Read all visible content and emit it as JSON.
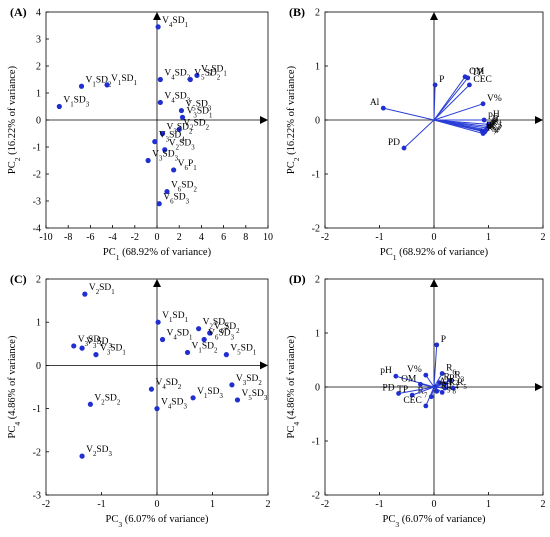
{
  "chart_data": [
    {
      "type": "scatter",
      "panel": "(A)",
      "xlabel": "PC|1| (68.92% of variance)",
      "ylabel": "PC|2| (16.22% of variance)",
      "xlim": [
        -10,
        10
      ],
      "ylim": [
        -4,
        4
      ],
      "xticks": [
        -10,
        -8,
        -6,
        -4,
        -2,
        0,
        2,
        4,
        6,
        8,
        10
      ],
      "yticks": [
        -4,
        -3,
        -2,
        -1,
        0,
        1,
        2,
        3,
        4
      ],
      "grid": false,
      "marker_color": "#1f2fd0",
      "points": [
        {
          "label": "V|4|SD|1|",
          "x": 0.1,
          "y": 3.45
        },
        {
          "label": "V|1|SD|2|",
          "x": -6.8,
          "y": 1.25
        },
        {
          "label": "V|1|SD|1|",
          "x": -4.5,
          "y": 1.3
        },
        {
          "label": "V|1|SD|3|",
          "x": -8.8,
          "y": 0.5
        },
        {
          "label": "V|4|SD|2|",
          "x": 0.3,
          "y": 1.5
        },
        {
          "label": "V|5|SD|1|",
          "x": 3.6,
          "y": 1.65
        },
        {
          "label": "V|5|SD|2|",
          "x": 3.0,
          "y": 1.5
        },
        {
          "label": "V|4|SD|3|",
          "x": 0.3,
          "y": 0.65
        },
        {
          "label": "V|5|SD|3|",
          "x": 2.2,
          "y": 0.35
        },
        {
          "label": "V|3|SD|1|",
          "x": 2.3,
          "y": 0.1
        },
        {
          "label": "V|2|SD|2|",
          "x": 2.0,
          "y": -0.35
        },
        {
          "label": "V|3|SD|2|",
          "x": 0.5,
          "y": -0.5
        },
        {
          "label": "V|3|SD|4|",
          "x": -0.2,
          "y": -0.8
        },
        {
          "label": "V|2|SD|3|",
          "x": 0.7,
          "y": -1.1
        },
        {
          "label": "V|3|SD|3|",
          "x": -0.8,
          "y": -1.5
        },
        {
          "label": "V|6|P|1|",
          "x": 1.5,
          "y": -1.85
        },
        {
          "label": "V|6|SD|2|",
          "x": 0.9,
          "y": -2.65
        },
        {
          "label": "V|6|SD|3|",
          "x": 0.2,
          "y": -3.1
        }
      ]
    },
    {
      "type": "biplot",
      "panel": "(B)",
      "xlabel": "PC|1| (68.92% of variance)",
      "ylabel": "PC|2| (16.22% of variance)",
      "xlim": [
        -2,
        2
      ],
      "ylim": [
        -2,
        2
      ],
      "xticks": [
        -2,
        -1,
        0,
        1,
        2
      ],
      "yticks": [
        -2,
        -1,
        0,
        1,
        2
      ],
      "grid": false,
      "marker_color": "#1f2fd0",
      "vectors": [
        {
          "label": "OM",
          "x": 0.57,
          "y": 0.8
        },
        {
          "label": "TP",
          "x": 0.62,
          "y": 0.78
        },
        {
          "label": "CEC",
          "x": 0.65,
          "y": 0.65
        },
        {
          "label": "P",
          "x": 0.02,
          "y": 0.65
        },
        {
          "label": "V%",
          "x": 0.9,
          "y": 0.3
        },
        {
          "label": "pH",
          "x": 0.92,
          "y": 0.0
        },
        {
          "label": "Al",
          "x": -0.93,
          "y": 0.22
        },
        {
          "label": "PD",
          "x": -0.55,
          "y": -0.52
        },
        {
          "label": "R|1|",
          "x": 1.0,
          "y": -0.08
        },
        {
          "label": "R|5|",
          "x": 1.0,
          "y": -0.12
        },
        {
          "label": "R|3|",
          "x": 0.98,
          "y": -0.15
        },
        {
          "label": "R|4|",
          "x": 0.96,
          "y": -0.18
        },
        {
          "label": "R|2|",
          "x": 0.94,
          "y": -0.2
        },
        {
          "label": "R|8|",
          "x": 0.93,
          "y": -0.22
        },
        {
          "label": "R|9|",
          "x": 0.88,
          "y": -0.2
        },
        {
          "label": "R|7|",
          "x": 0.9,
          "y": -0.25
        }
      ]
    },
    {
      "type": "scatter",
      "panel": "(C)",
      "xlabel": "PC|3| (6.07% of variance)",
      "ylabel": "PC|4| (4.86% of variance)",
      "xlim": [
        -2,
        2
      ],
      "ylim": [
        -3,
        2
      ],
      "xticks": [
        -2,
        -1,
        0,
        1,
        2
      ],
      "yticks": [
        -3,
        -2,
        -1,
        0,
        1,
        2
      ],
      "grid": false,
      "marker_color": "#1f2fd0",
      "points": [
        {
          "label": "V|2|SD|1|",
          "x": -1.3,
          "y": 1.65
        },
        {
          "label": "V|1|SD|1|",
          "x": 0.02,
          "y": 1.0
        },
        {
          "label": "V|3|SD|2|",
          "x": -1.5,
          "y": 0.45
        },
        {
          "label": "V|3|SD|3|",
          "x": -1.35,
          "y": 0.4
        },
        {
          "label": "V|3|SD|1|",
          "x": -1.1,
          "y": 0.25
        },
        {
          "label": "V|2|SD|2|",
          "x": 0.75,
          "y": 0.85
        },
        {
          "label": "V|6|SD|2|",
          "x": 0.95,
          "y": 0.75
        },
        {
          "label": "V|4|SD|1|",
          "x": 0.1,
          "y": 0.6
        },
        {
          "label": "V|6|SD|3|",
          "x": 0.85,
          "y": 0.6
        },
        {
          "label": "V|1|SD|2|",
          "x": 0.55,
          "y": 0.3
        },
        {
          "label": "V|5|SD|1|",
          "x": 1.25,
          "y": 0.25
        },
        {
          "label": "V|2|SD|2|",
          "x": -1.2,
          "y": -0.9
        },
        {
          "label": "V|4|SD|2|",
          "x": -0.1,
          "y": -0.55
        },
        {
          "label": "V|4|SD|3|",
          "x": 0.0,
          "y": -1.0
        },
        {
          "label": "V|1|SD|3|",
          "x": 0.65,
          "y": -0.75
        },
        {
          "label": "V|3|SD|2|",
          "x": 1.35,
          "y": -0.45
        },
        {
          "label": "V|5|SD|3|",
          "x": 1.45,
          "y": -0.8
        },
        {
          "label": "V|2|SD|3|",
          "x": -1.35,
          "y": -2.1
        }
      ]
    },
    {
      "type": "biplot",
      "panel": "(D)",
      "xlabel": "PC|3| (6.07% of variance)",
      "ylabel": "PC|4| (4.86% of variance)",
      "xlim": [
        -2,
        2
      ],
      "ylim": [
        -2,
        2
      ],
      "xticks": [
        -2,
        -1,
        0,
        1,
        2
      ],
      "yticks": [
        -2,
        -1,
        0,
        1,
        2
      ],
      "grid": false,
      "marker_color": "#1f2fd0",
      "vectors": [
        {
          "label": "P",
          "x": 0.05,
          "y": 0.78
        },
        {
          "label": "pH",
          "x": -0.7,
          "y": 0.2
        },
        {
          "label": "V%",
          "x": -0.15,
          "y": 0.22
        },
        {
          "label": "OM",
          "x": -0.25,
          "y": 0.05
        },
        {
          "label": "R|6|",
          "x": 0.15,
          "y": 0.25
        },
        {
          "label": "R|3|",
          "x": 0.3,
          "y": 0.12
        },
        {
          "label": "R|1|",
          "x": 0.1,
          "y": 0.08
        },
        {
          "label": "R|2|",
          "x": 0.2,
          "y": 0.06
        },
        {
          "label": "Al",
          "x": 0.02,
          "y": 0.0
        },
        {
          "label": "R|4|",
          "x": 0.2,
          "y": -0.02
        },
        {
          "label": "R|5|",
          "x": 0.35,
          "y": -0.02
        },
        {
          "label": "R|9|",
          "x": 0.05,
          "y": -0.08
        },
        {
          "label": "R|8|",
          "x": 0.15,
          "y": -0.1
        },
        {
          "label": "R|7|",
          "x": -0.05,
          "y": -0.18
        },
        {
          "label": "PD",
          "x": -0.65,
          "y": -0.12
        },
        {
          "label": "TP",
          "x": -0.4,
          "y": -0.15
        },
        {
          "label": "CEC",
          "x": -0.15,
          "y": -0.35
        }
      ]
    }
  ]
}
